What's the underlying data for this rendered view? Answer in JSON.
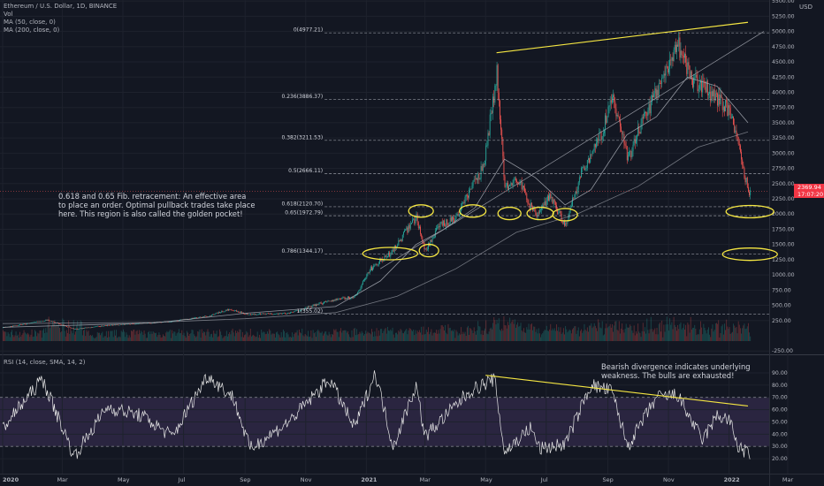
{
  "header": {
    "symbol": "Ethereum / U.S. Dollar, 1D, BINANCE",
    "vol": "Vol",
    "ma50": "MA (50, close, 0)",
    "ma200": "MA (200, close, 0)",
    "rsi": "RSI (14, close, SMA, 14, 2)",
    "currency": "USD"
  },
  "price_tag": {
    "price": "2369.94",
    "countdown": "17:07:20"
  },
  "annotations": {
    "fib_note": [
      "0.618 and 0.65 Fib. retracement: An effective area",
      "to place an order. Optimal pullback trades take place",
      "here. This region is also called the golden pocket!"
    ],
    "rsi_note": [
      "Bearish divergence indicates underlying",
      "weakness. The bulls are exhausted!"
    ]
  },
  "colors": {
    "background": "#131722",
    "up": "#26a69a",
    "down": "#ef5350",
    "trendline": "#f5e642",
    "ma": "#b2b5be",
    "rsi_line": "#e6e6e6",
    "rsi_band": "#2a2540",
    "grid": "#1e222d"
  },
  "chart_data": [
    {
      "type": "candlestick",
      "title": "Ethereum / U.S. Dollar, 1D, BINANCE",
      "x_tick_labels": [
        "2020",
        "Mar",
        "May",
        "Jul",
        "Sep",
        "Nov",
        "2021",
        "Mar",
        "May",
        "Jul",
        "Sep",
        "Nov",
        "2022",
        "Mar"
      ],
      "y_tick_labels": [
        "5500.00",
        "5250.00",
        "5000.00",
        "4750.00",
        "4500.00",
        "4250.00",
        "4000.00",
        "3750.00",
        "3500.00",
        "3250.00",
        "3000.00",
        "2750.00",
        "2500.00",
        "2250.00",
        "2000.00",
        "1750.00",
        "1500.00",
        "1250.00",
        "1000.00",
        "750.00",
        "500.00",
        "250.00",
        "-250.00"
      ],
      "ylim": [
        -300,
        5500
      ],
      "close_path": [
        [
          "2020-01-01",
          130
        ],
        [
          "2020-02-15",
          260
        ],
        [
          "2020-03-13",
          110
        ],
        [
          "2020-04-15",
          170
        ],
        [
          "2020-05-15",
          200
        ],
        [
          "2020-06-15",
          230
        ],
        [
          "2020-07-25",
          320
        ],
        [
          "2020-08-15",
          430
        ],
        [
          "2020-09-05",
          350
        ],
        [
          "2020-10-15",
          370
        ],
        [
          "2020-11-25",
          580
        ],
        [
          "2020-12-20",
          640
        ],
        [
          "2021-01-05",
          1100
        ],
        [
          "2021-01-25",
          1350
        ],
        [
          "2021-02-20",
          1950
        ],
        [
          "2021-03-01",
          1400
        ],
        [
          "2021-03-15",
          1800
        ],
        [
          "2021-04-01",
          1950
        ],
        [
          "2021-04-15",
          2400
        ],
        [
          "2021-04-28",
          2750
        ],
        [
          "2021-05-12",
          4300
        ],
        [
          "2021-05-20",
          2450
        ],
        [
          "2021-06-01",
          2600
        ],
        [
          "2021-06-20",
          1950
        ],
        [
          "2021-07-05",
          2300
        ],
        [
          "2021-07-20",
          1800
        ],
        [
          "2021-08-05",
          2700
        ],
        [
          "2021-08-25",
          3300
        ],
        [
          "2021-09-05",
          3900
        ],
        [
          "2021-09-21",
          2900
        ],
        [
          "2021-10-05",
          3500
        ],
        [
          "2021-10-22",
          4100
        ],
        [
          "2021-11-10",
          4800
        ],
        [
          "2021-11-25",
          4200
        ],
        [
          "2021-12-05",
          4100
        ],
        [
          "2021-12-20",
          3900
        ],
        [
          "2022-01-01",
          3700
        ],
        [
          "2022-01-10",
          3100
        ],
        [
          "2022-01-20",
          2370
        ]
      ],
      "ma50_path": [
        [
          "2020-01-01",
          140
        ],
        [
          "2020-06-01",
          210
        ],
        [
          "2020-09-01",
          370
        ],
        [
          "2020-12-01",
          480
        ],
        [
          "2021-01-15",
          900
        ],
        [
          "2021-02-20",
          1500
        ],
        [
          "2021-03-20",
          1750
        ],
        [
          "2021-04-20",
          2100
        ],
        [
          "2021-05-20",
          2900
        ],
        [
          "2021-06-20",
          2600
        ],
        [
          "2021-07-20",
          2150
        ],
        [
          "2021-08-15",
          2400
        ],
        [
          "2021-09-20",
          3300
        ],
        [
          "2021-10-20",
          3600
        ],
        [
          "2021-11-20",
          4250
        ],
        [
          "2021-12-20",
          4100
        ],
        [
          "2022-01-20",
          3500
        ]
      ],
      "ma200_path": [
        [
          "2020-01-01",
          200
        ],
        [
          "2020-06-01",
          220
        ],
        [
          "2020-09-01",
          280
        ],
        [
          "2020-12-01",
          380
        ],
        [
          "2021-02-01",
          650
        ],
        [
          "2021-04-01",
          1100
        ],
        [
          "2021-06-01",
          1700
        ],
        [
          "2021-08-01",
          2000
        ],
        [
          "2021-10-01",
          2450
        ],
        [
          "2021-12-01",
          3100
        ],
        [
          "2022-01-20",
          3350
        ]
      ],
      "fibonacci": [
        {
          "label": "0(4977.21)",
          "value": 4977.21
        },
        {
          "label": "0.236(3886.37)",
          "value": 3886.37
        },
        {
          "label": "0.382(3211.53)",
          "value": 3211.53
        },
        {
          "label": "0.5(2666.11)",
          "value": 2666.11
        },
        {
          "label": "0.618(2120.70)",
          "value": 2120.7
        },
        {
          "label": "0.65(1972.79)",
          "value": 1972.79
        },
        {
          "label": "0.786(1344.17)",
          "value": 1344.17
        },
        {
          "label": "1(355.02)",
          "value": 355.02
        }
      ],
      "trendlines": [
        {
          "from": [
            "2021-05-12",
            4650
          ],
          "to": [
            "2022-01-20",
            5150
          ]
        },
        {
          "from": [
            "2021-01-15",
            1100
          ],
          "to": [
            "2022-02-05",
            5000
          ]
        }
      ],
      "highlight_ellipses": [
        [
          "2021-01-25",
          1350
        ],
        [
          "2021-02-25",
          2050
        ],
        [
          "2021-03-05",
          1400
        ],
        [
          "2021-04-18",
          2050
        ],
        [
          "2021-05-25",
          2010
        ],
        [
          "2021-06-25",
          2010
        ],
        [
          "2021-07-20",
          1990
        ],
        [
          "2022-01-22",
          2040
        ],
        [
          "2022-01-22",
          1340
        ]
      ]
    },
    {
      "type": "line",
      "title": "RSI (14, close, SMA, 14, 2)",
      "y_tick_labels": [
        "90.00",
        "80.00",
        "70.00",
        "60.00",
        "50.00",
        "40.00",
        "30.00",
        "20.00"
      ],
      "ylim": [
        15,
        95
      ],
      "bands": [
        30,
        70
      ],
      "rsi_path": [
        [
          "2020-01-01",
          45
        ],
        [
          "2020-02-10",
          85
        ],
        [
          "2020-03-13",
          22
        ],
        [
          "2020-04-15",
          62
        ],
        [
          "2020-05-20",
          55
        ],
        [
          "2020-06-20",
          38
        ],
        [
          "2020-07-25",
          88
        ],
        [
          "2020-08-20",
          70
        ],
        [
          "2020-09-06",
          28
        ],
        [
          "2020-10-15",
          50
        ],
        [
          "2020-11-25",
          85
        ],
        [
          "2020-12-20",
          45
        ],
        [
          "2021-01-10",
          90
        ],
        [
          "2021-01-28",
          30
        ],
        [
          "2021-02-20",
          80
        ],
        [
          "2021-03-01",
          38
        ],
        [
          "2021-04-15",
          75
        ],
        [
          "2021-05-10",
          85
        ],
        [
          "2021-05-20",
          25
        ],
        [
          "2021-06-15",
          45
        ],
        [
          "2021-06-25",
          28
        ],
        [
          "2021-07-20",
          32
        ],
        [
          "2021-08-15",
          80
        ],
        [
          "2021-09-05",
          75
        ],
        [
          "2021-09-21",
          30
        ],
        [
          "2021-10-20",
          70
        ],
        [
          "2021-11-10",
          72
        ],
        [
          "2021-12-05",
          35
        ],
        [
          "2021-12-20",
          55
        ],
        [
          "2022-01-01",
          52
        ],
        [
          "2022-01-10",
          30
        ],
        [
          "2022-01-20",
          24
        ]
      ],
      "divergence_line": {
        "from": [
          "2021-05-01",
          88
        ],
        "to": [
          "2022-01-20",
          63
        ]
      }
    }
  ]
}
